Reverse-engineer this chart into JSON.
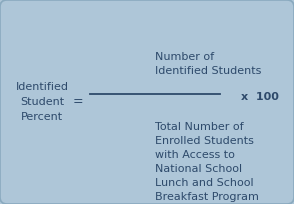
{
  "background_color": "#aec6d8",
  "text_color": "#2e4a6b",
  "figsize": [
    2.94,
    2.04
  ],
  "dpi": 100,
  "left_label": "Identified\nStudent\nPercent",
  "equals_sign": "=",
  "numerator": "Number of\nIdentified Students",
  "denominator": "Total Number of\nEnrolled Students\nwith Access to\nNational School\nLunch and School\nBreakfast Program",
  "multiplier": "x  100",
  "font_size": 8.0,
  "bold": false
}
